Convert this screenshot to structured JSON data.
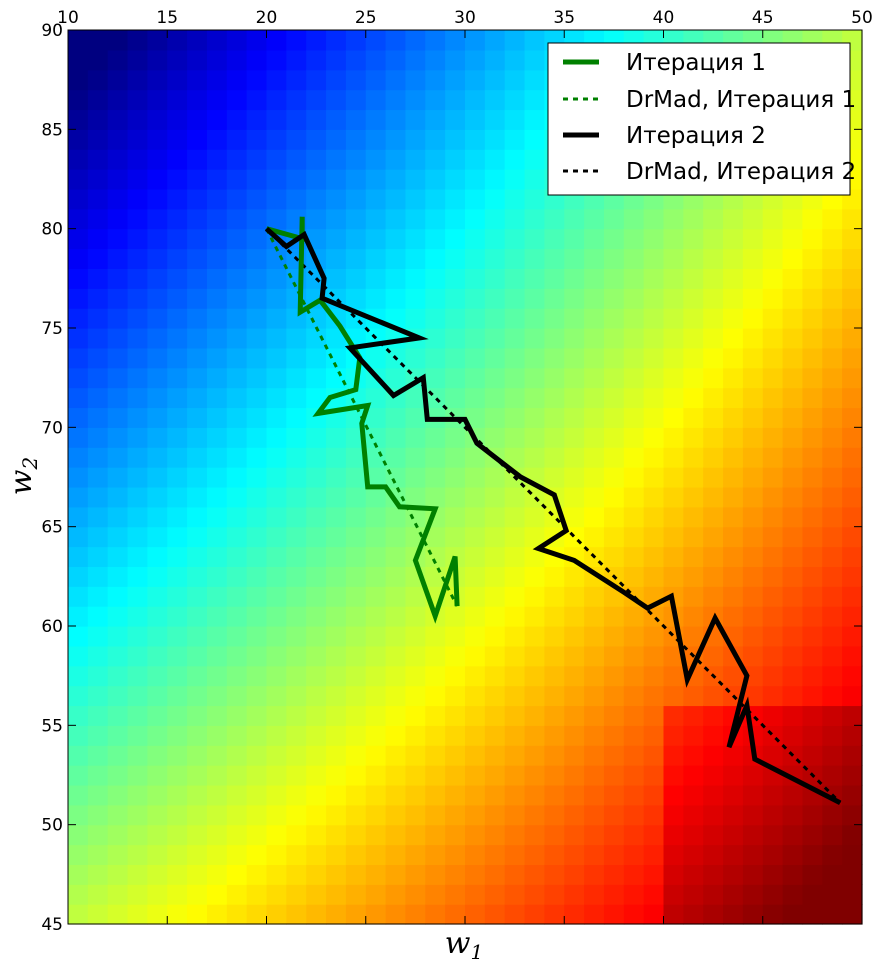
{
  "chart_data": {
    "type": "line",
    "background": "heatmap",
    "colormap": "jet",
    "xlabel": "w",
    "xlabel_sub": "1",
    "ylabel": "w",
    "ylabel_sub": "2",
    "xlim": [
      10,
      50
    ],
    "ylim": [
      45,
      90
    ],
    "xticks": [
      10,
      15,
      20,
      25,
      30,
      35,
      40,
      45,
      50
    ],
    "yticks": [
      45,
      50,
      55,
      60,
      65,
      70,
      75,
      80,
      85,
      90
    ],
    "x_tick_labels_position": "top",
    "legend_position": "top-right",
    "series": [
      {
        "name": "Итерация 1",
        "color": "#008000",
        "style": "solid",
        "x": [
          20.0,
          21.8,
          21.8,
          21.7,
          22.7,
          23.7,
          24.7,
          24.5,
          23.2,
          22.6,
          25.1,
          24.8,
          25.1,
          26.0,
          26.7,
          28.5,
          27.5,
          28.5,
          29.5,
          29.6
        ],
        "y": [
          80.0,
          79.5,
          80.6,
          75.8,
          76.4,
          75.1,
          73.5,
          71.9,
          71.5,
          70.7,
          71.1,
          70.2,
          67.0,
          67.0,
          66.0,
          65.9,
          63.3,
          60.5,
          63.5,
          61.0
        ]
      },
      {
        "name": "DrMad, Итерация 1",
        "color": "#008000",
        "style": "dashed",
        "x": [
          20.0,
          29.6
        ],
        "y": [
          80.0,
          61.0
        ]
      },
      {
        "name": "Итерация 2",
        "color": "#000000",
        "style": "solid",
        "x": [
          20.0,
          21.0,
          21.9,
          22.9,
          22.8,
          27.7,
          24.2,
          26.4,
          27.9,
          28.1,
          30.0,
          30.6,
          32.8,
          34.5,
          35.1,
          33.7,
          35.5,
          38.0,
          39.2,
          40.4,
          41.2,
          42.6,
          44.2,
          43.3,
          44.2,
          44.6,
          48.9
        ],
        "y": [
          80.0,
          79.1,
          79.7,
          77.5,
          76.5,
          74.5,
          74.0,
          71.6,
          72.5,
          70.4,
          70.4,
          69.2,
          67.5,
          66.6,
          64.8,
          63.9,
          63.3,
          61.7,
          60.9,
          61.5,
          57.3,
          60.4,
          57.5,
          53.9,
          56.0,
          53.3,
          51.1
        ]
      },
      {
        "name": "DrMad, Итерация 2",
        "color": "#000000",
        "style": "dashed",
        "x": [
          20.0,
          48.9
        ],
        "y": [
          80.0,
          51.1
        ]
      }
    ]
  }
}
